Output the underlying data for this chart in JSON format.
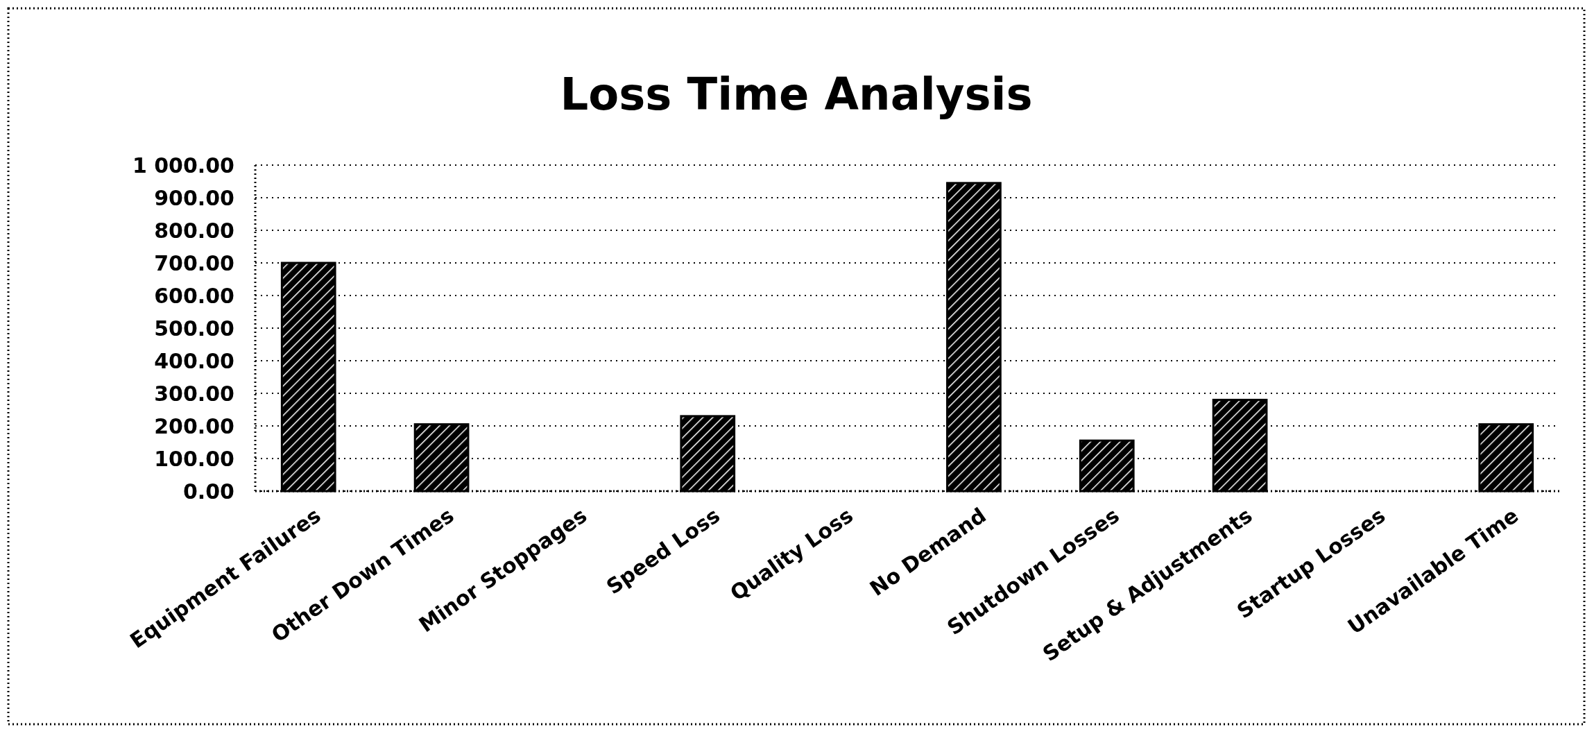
{
  "chart_data": {
    "type": "bar",
    "title": "Loss Time Analysis",
    "categories": [
      "Equipment Failures",
      "Other Down Times",
      "Minor Stoppages",
      "Speed Loss",
      "Quality Loss",
      "No Demand",
      "Shutdown Losses",
      "Setup & Adjustments",
      "Startup Losses",
      "Unavailable Time"
    ],
    "values": [
      700,
      205,
      0,
      230,
      0,
      945,
      155,
      280,
      0,
      205
    ],
    "color": "#000000",
    "ylim": [
      0,
      1000
    ],
    "yticks": [
      {
        "value": 0,
        "label": "0.00"
      },
      {
        "value": 100,
        "label": "100.00"
      },
      {
        "value": 200,
        "label": "200.00"
      },
      {
        "value": 300,
        "label": "300.00"
      },
      {
        "value": 400,
        "label": "400.00"
      },
      {
        "value": 500,
        "label": "500.00"
      },
      {
        "value": 600,
        "label": "600.00"
      },
      {
        "value": 700,
        "label": "700.00"
      },
      {
        "value": 800,
        "label": "800.00"
      },
      {
        "value": 900,
        "label": "900.00"
      },
      {
        "value": 1000,
        "label": "1 000.00"
      }
    ],
    "grid": "y"
  }
}
